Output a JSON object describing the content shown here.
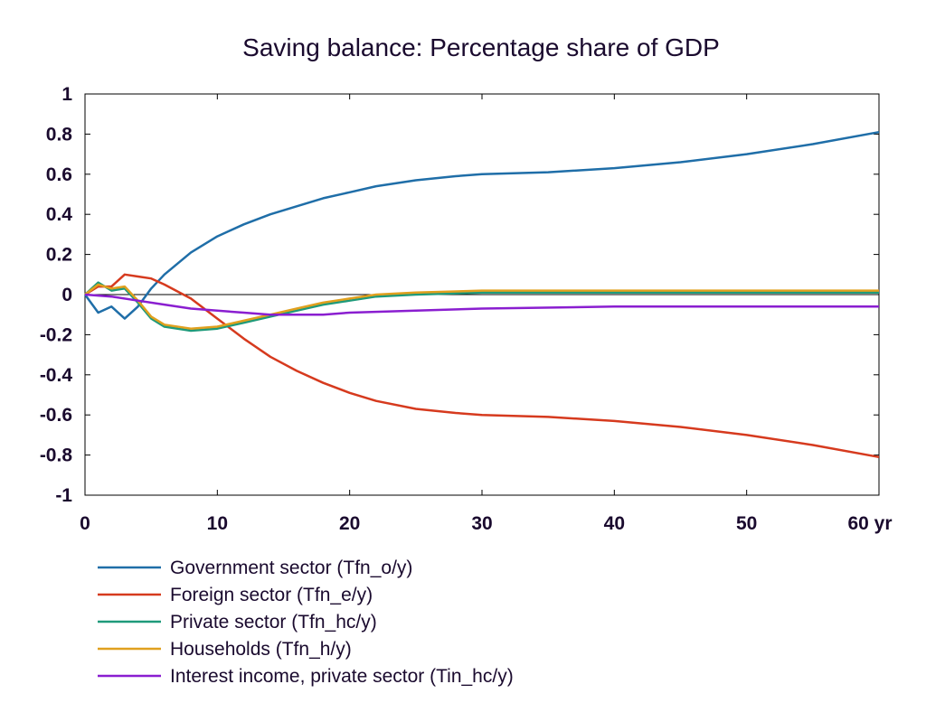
{
  "chart_data": {
    "type": "line",
    "title": "Saving balance: Percentage share of GDP",
    "xlabel": "",
    "ylabel": "",
    "x_unit": "yr",
    "xlim": [
      0,
      60
    ],
    "ylim": [
      -1,
      1
    ],
    "x_ticks": [
      0,
      10,
      20,
      30,
      40,
      50,
      60
    ],
    "y_ticks": [
      1,
      0.8,
      0.6,
      0.4,
      0.2,
      0,
      -0.2,
      -0.4,
      -0.6,
      -0.8,
      -1
    ],
    "y_tick_labels": [
      "1",
      "0.8",
      "0.6",
      "0.4",
      "0.2",
      "0",
      "-0.2",
      "-0.4",
      "-0.6",
      "-0.8",
      "-1"
    ],
    "x_tick_labels": [
      "0",
      "10",
      "20",
      "30",
      "40",
      "50",
      "60 yr"
    ],
    "grid": false,
    "legend_position": "bottom",
    "series": [
      {
        "name": "Government sector (Tfn_o/y)",
        "color": "#1f6ea8",
        "points": [
          [
            0,
            0
          ],
          [
            1,
            -0.09
          ],
          [
            2,
            -0.06
          ],
          [
            3,
            -0.12
          ],
          [
            4,
            -0.06
          ],
          [
            5,
            0.03
          ],
          [
            6,
            0.1
          ],
          [
            8,
            0.21
          ],
          [
            10,
            0.29
          ],
          [
            12,
            0.35
          ],
          [
            14,
            0.4
          ],
          [
            16,
            0.44
          ],
          [
            18,
            0.48
          ],
          [
            20,
            0.51
          ],
          [
            22,
            0.54
          ],
          [
            25,
            0.57
          ],
          [
            28,
            0.59
          ],
          [
            30,
            0.6
          ],
          [
            35,
            0.61
          ],
          [
            40,
            0.63
          ],
          [
            45,
            0.66
          ],
          [
            50,
            0.7
          ],
          [
            55,
            0.75
          ],
          [
            60,
            0.81
          ]
        ]
      },
      {
        "name": "Foreign sector (Tfn_e/y)",
        "color": "#d63a1e",
        "points": [
          [
            0,
            0
          ],
          [
            1,
            0.04
          ],
          [
            2,
            0.04
          ],
          [
            3,
            0.1
          ],
          [
            4,
            0.09
          ],
          [
            5,
            0.08
          ],
          [
            6,
            0.05
          ],
          [
            8,
            -0.02
          ],
          [
            10,
            -0.12
          ],
          [
            12,
            -0.22
          ],
          [
            14,
            -0.31
          ],
          [
            16,
            -0.38
          ],
          [
            18,
            -0.44
          ],
          [
            20,
            -0.49
          ],
          [
            22,
            -0.53
          ],
          [
            25,
            -0.57
          ],
          [
            28,
            -0.59
          ],
          [
            30,
            -0.6
          ],
          [
            35,
            -0.61
          ],
          [
            40,
            -0.63
          ],
          [
            45,
            -0.66
          ],
          [
            50,
            -0.7
          ],
          [
            55,
            -0.75
          ],
          [
            60,
            -0.81
          ]
        ]
      },
      {
        "name": "Private sector (Tfn_hc/y)",
        "color": "#1e9a7a",
        "points": [
          [
            0,
            0
          ],
          [
            1,
            0.06
          ],
          [
            2,
            0.02
          ],
          [
            3,
            0.03
          ],
          [
            4,
            -0.04
          ],
          [
            5,
            -0.12
          ],
          [
            6,
            -0.16
          ],
          [
            8,
            -0.18
          ],
          [
            10,
            -0.17
          ],
          [
            12,
            -0.14
          ],
          [
            14,
            -0.11
          ],
          [
            16,
            -0.08
          ],
          [
            18,
            -0.05
          ],
          [
            20,
            -0.03
          ],
          [
            22,
            -0.01
          ],
          [
            25,
            0
          ],
          [
            30,
            0.01
          ],
          [
            40,
            0.01
          ],
          [
            50,
            0.01
          ],
          [
            60,
            0.01
          ]
        ]
      },
      {
        "name": "Households (Tfn_h/y)",
        "color": "#e0a01e",
        "points": [
          [
            0,
            0
          ],
          [
            1,
            0.05
          ],
          [
            2,
            0.03
          ],
          [
            3,
            0.04
          ],
          [
            4,
            -0.03
          ],
          [
            5,
            -0.11
          ],
          [
            6,
            -0.15
          ],
          [
            8,
            -0.17
          ],
          [
            10,
            -0.16
          ],
          [
            12,
            -0.13
          ],
          [
            14,
            -0.1
          ],
          [
            16,
            -0.07
          ],
          [
            18,
            -0.04
          ],
          [
            20,
            -0.02
          ],
          [
            22,
            0
          ],
          [
            25,
            0.01
          ],
          [
            30,
            0.02
          ],
          [
            40,
            0.02
          ],
          [
            50,
            0.02
          ],
          [
            60,
            0.02
          ]
        ]
      },
      {
        "name": "Interest income, private sector (Tin_hc/y)",
        "color": "#8a1ed0",
        "points": [
          [
            0,
            0
          ],
          [
            2,
            -0.01
          ],
          [
            4,
            -0.03
          ],
          [
            6,
            -0.05
          ],
          [
            8,
            -0.07
          ],
          [
            10,
            -0.08
          ],
          [
            12,
            -0.09
          ],
          [
            14,
            -0.1
          ],
          [
            16,
            -0.1
          ],
          [
            18,
            -0.1
          ],
          [
            20,
            -0.09
          ],
          [
            25,
            -0.08
          ],
          [
            30,
            -0.07
          ],
          [
            40,
            -0.06
          ],
          [
            50,
            -0.06
          ],
          [
            60,
            -0.06
          ]
        ]
      }
    ]
  }
}
